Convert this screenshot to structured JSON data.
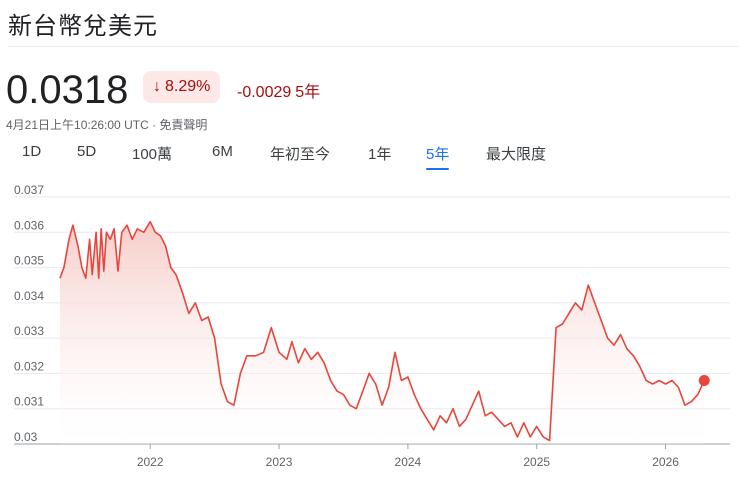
{
  "header": {
    "title": "新台幣兌美元"
  },
  "quote": {
    "price": "0.0318",
    "change_arrow": "↓",
    "change_pct": "8.29%",
    "change_abs": "-0.0029",
    "change_period": "5年",
    "timestamp": "4月21日上午10:26:00 UTC · 免責聲明"
  },
  "range_tabs": [
    {
      "label": "1D"
    },
    {
      "label": "5D"
    },
    {
      "label": "100萬"
    },
    {
      "label": "6M"
    },
    {
      "label": "年初至今"
    },
    {
      "label": "1年"
    },
    {
      "label": "5年",
      "active": true
    },
    {
      "label": "最大限度"
    }
  ],
  "colors": {
    "line": "#e8453c",
    "fill_top": "#f6c9c5",
    "negative_text": "#a50e0e",
    "negative_bg": "#fce8e6",
    "active_tab": "#1a73e8"
  },
  "chart_data": {
    "type": "area",
    "ylim": [
      0.03,
      0.037
    ],
    "yticks": [
      "0.037",
      "0.036",
      "0.035",
      "0.034",
      "0.033",
      "0.032",
      "0.031",
      "0.03"
    ],
    "xlim": [
      2021.3,
      2026.5
    ],
    "xticks": [
      "2022",
      "2023",
      "2024",
      "2025",
      "2026"
    ],
    "grid": true,
    "series": [
      {
        "x": [
          2021.3,
          2021.33,
          2021.37,
          2021.4,
          2021.44,
          2021.47,
          2021.5,
          2021.53,
          2021.55,
          2021.58,
          2021.6,
          2021.62,
          2021.64,
          2021.66,
          2021.69,
          2021.72,
          2021.75,
          2021.78,
          2021.82,
          2021.86,
          2021.9,
          2021.95,
          2022.0,
          2022.04,
          2022.08,
          2022.12,
          2022.16,
          2022.2,
          2022.25,
          2022.3,
          2022.35,
          2022.4,
          2022.45,
          2022.5,
          2022.55,
          2022.6,
          2022.65,
          2022.7,
          2022.75,
          2022.82,
          2022.88,
          2022.94,
          2023.0,
          2023.06,
          2023.1,
          2023.15,
          2023.2,
          2023.25,
          2023.3,
          2023.35,
          2023.4,
          2023.45,
          2023.5,
          2023.55,
          2023.6,
          2023.65,
          2023.7,
          2023.75,
          2023.8,
          2023.85,
          2023.9,
          2023.95,
          2024.0,
          2024.05,
          2024.1,
          2024.15,
          2024.2,
          2024.25,
          2024.3,
          2024.35,
          2024.4,
          2024.45,
          2024.5,
          2024.55,
          2024.6,
          2024.65,
          2024.7,
          2024.75,
          2024.8,
          2024.85,
          2024.9,
          2024.95,
          2025.0,
          2025.05,
          2025.1,
          2025.15,
          2025.2,
          2025.25,
          2025.3,
          2025.35,
          2025.4,
          2025.45,
          2025.5,
          2025.55,
          2025.6,
          2025.65,
          2025.7,
          2025.75,
          2025.8,
          2025.85,
          2025.9,
          2025.95,
          2026.0,
          2026.05,
          2026.1,
          2026.15,
          2026.2,
          2026.25,
          2026.3
        ],
        "y": [
          0.0347,
          0.035,
          0.0358,
          0.0362,
          0.0356,
          0.035,
          0.0347,
          0.0358,
          0.0348,
          0.036,
          0.0347,
          0.0361,
          0.0349,
          0.036,
          0.0358,
          0.0361,
          0.0349,
          0.036,
          0.0362,
          0.0358,
          0.0361,
          0.036,
          0.0363,
          0.036,
          0.0359,
          0.0356,
          0.035,
          0.0348,
          0.0343,
          0.0337,
          0.034,
          0.0335,
          0.0336,
          0.033,
          0.0317,
          0.0312,
          0.0311,
          0.032,
          0.0325,
          0.0325,
          0.0326,
          0.0333,
          0.0326,
          0.0324,
          0.0329,
          0.0323,
          0.0327,
          0.0324,
          0.0326,
          0.0323,
          0.0318,
          0.0315,
          0.0314,
          0.0311,
          0.031,
          0.0315,
          0.032,
          0.0317,
          0.0311,
          0.0316,
          0.0326,
          0.0318,
          0.0319,
          0.0314,
          0.031,
          0.0307,
          0.0304,
          0.0308,
          0.0306,
          0.031,
          0.0305,
          0.0307,
          0.0311,
          0.0315,
          0.0308,
          0.0309,
          0.0307,
          0.0305,
          0.0306,
          0.0302,
          0.0306,
          0.0302,
          0.0305,
          0.0302,
          0.0301,
          0.0333,
          0.0334,
          0.0337,
          0.034,
          0.0338,
          0.0345,
          0.034,
          0.0335,
          0.033,
          0.0328,
          0.0331,
          0.0327,
          0.0325,
          0.0322,
          0.0318,
          0.0317,
          0.0318,
          0.0317,
          0.0318,
          0.0316,
          0.0311,
          0.0312,
          0.0314,
          0.0318
        ]
      }
    ]
  }
}
